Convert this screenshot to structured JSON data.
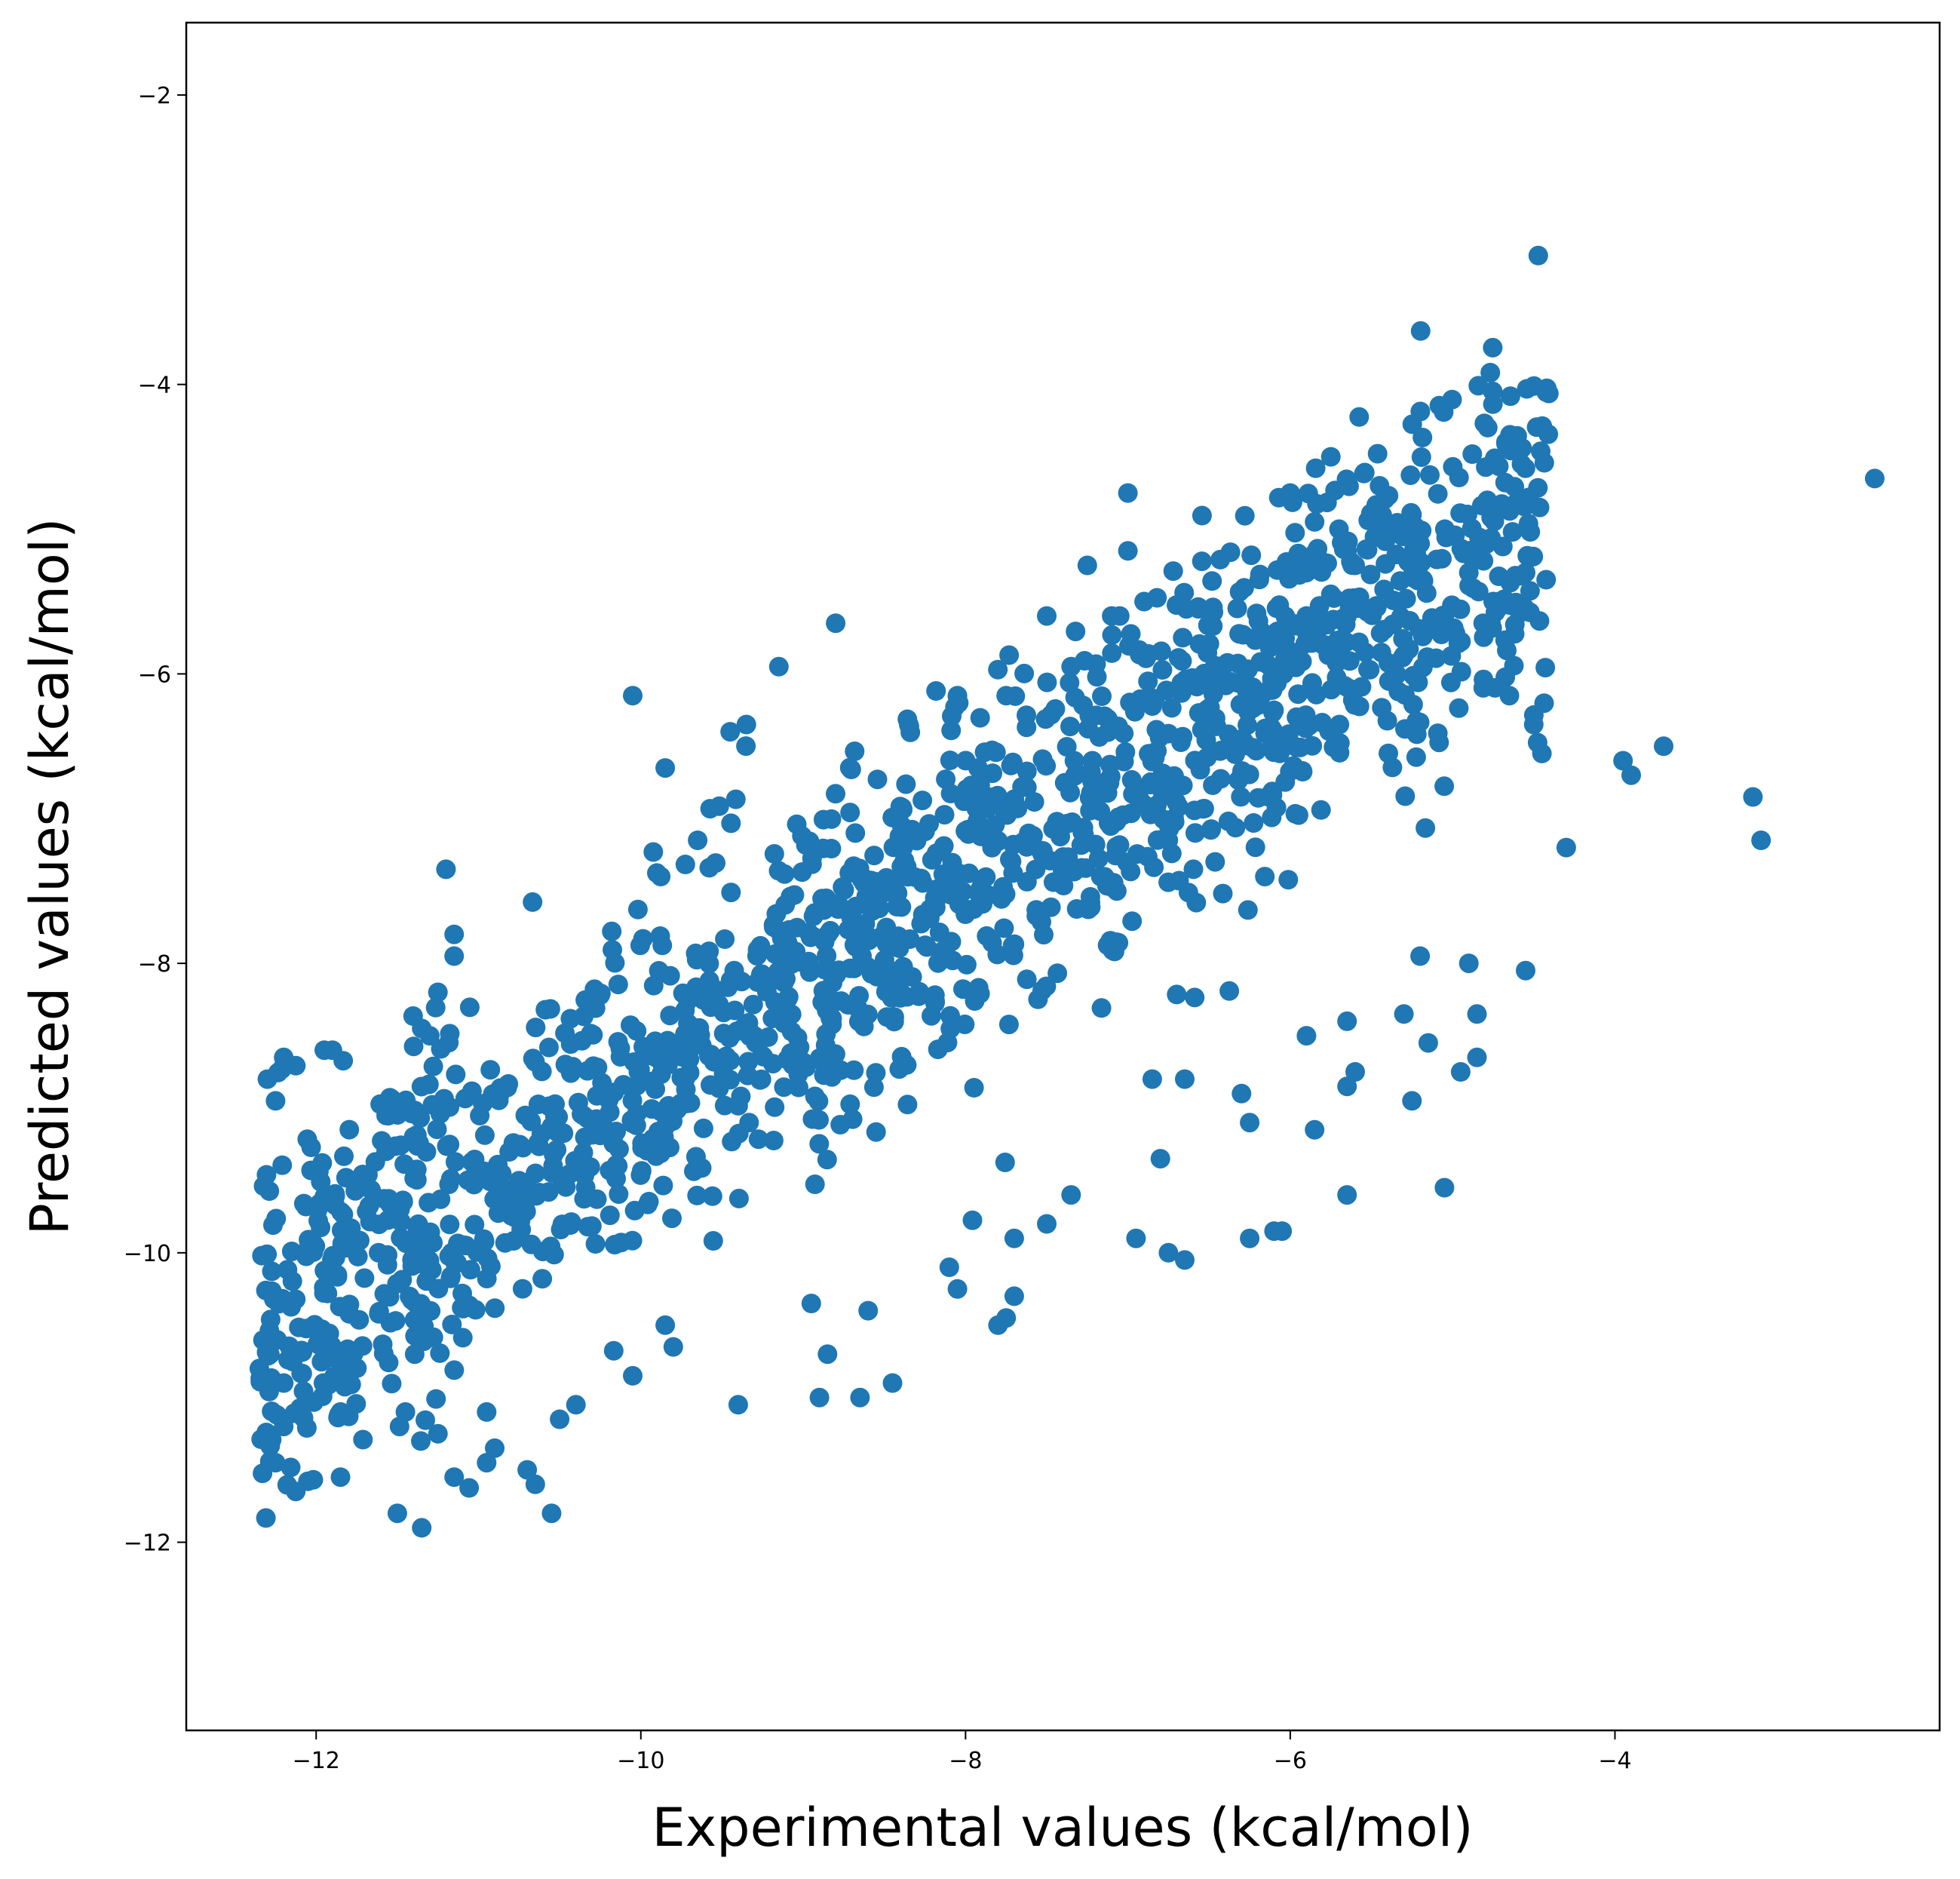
{
  "chart_data": {
    "type": "scatter",
    "xlabel": "Experimental values (kcal/mol)",
    "ylabel": "Predicted values (kcal/mol)",
    "xlim": [
      -12.8,
      -2.0
    ],
    "ylim": [
      -13.3,
      -1.5
    ],
    "xticks": [
      -12,
      -10,
      -8,
      -6,
      -4
    ],
    "xtick_labels": [
      "−12",
      "−10",
      "−8",
      "−6",
      "−4"
    ],
    "yticks": [
      -12,
      -10,
      -8,
      -6,
      -4,
      -2
    ],
    "ytick_labels": [
      "−12",
      "−10",
      "−8",
      "−6",
      "−4",
      "−2"
    ],
    "grid": false,
    "legend": "none",
    "marker_color": "#1f77b4",
    "outliers": [
      [
        -2.4,
        -4.65
      ],
      [
        -3.1,
        -7.15
      ],
      [
        -3.15,
        -6.85
      ],
      [
        -3.7,
        -6.5
      ],
      [
        -3.9,
        -6.7
      ],
      [
        -3.95,
        -6.6
      ],
      [
        -4.3,
        -7.2
      ],
      [
        -4.45,
        -6.55
      ],
      [
        -4.65,
        -4.4
      ],
      [
        -4.55,
        -5.3
      ],
      [
        -4.55,
        -8.05
      ],
      [
        -4.75,
        -5.5
      ],
      [
        -4.9,
        -5.3
      ],
      [
        -4.9,
        -8.0
      ],
      [
        -4.85,
        -8.35
      ],
      [
        -4.85,
        -8.65
      ],
      [
        -4.95,
        -8.75
      ],
      [
        -5.05,
        -5.6
      ],
      [
        -5.2,
        -5.1
      ],
      [
        -5.25,
        -4.9
      ],
      [
        -5.2,
        -7.95
      ],
      [
        -5.15,
        -8.55
      ],
      [
        -5.25,
        -8.95
      ],
      [
        -5.45,
        -4.7
      ],
      [
        -5.6,
        -5.25
      ],
      [
        -5.65,
        -5.6
      ],
      [
        -5.65,
        -8.4
      ],
      [
        -5.6,
        -8.75
      ],
      [
        -5.65,
        -8.85
      ],
      [
        -5.65,
        -9.6
      ],
      [
        -5.75,
        -4.5
      ],
      [
        -5.7,
        -5.0
      ],
      [
        -5.75,
        -5.45
      ],
      [
        -5.85,
        -4.95
      ],
      [
        -5.9,
        -5.6
      ],
      [
        -5.9,
        -5.3
      ],
      [
        -6.0,
        -4.75
      ],
      [
        -5.85,
        -9.15
      ],
      [
        -5.9,
        -8.5
      ],
      [
        -6.05,
        -9.85
      ],
      [
        -6.25,
        -9.9
      ],
      [
        -6.25,
        -9.1
      ],
      [
        -6.3,
        -8.9
      ],
      [
        -6.65,
        -10.05
      ],
      [
        -6.65,
        -8.8
      ],
      [
        -6.85,
        -8.8
      ],
      [
        -6.8,
        -9.35
      ],
      [
        -6.95,
        -9.9
      ],
      [
        -7.0,
        -4.75
      ],
      [
        -7.0,
        -5.15
      ],
      [
        -6.9,
        -5.5
      ],
      [
        -7.05,
        -5.6
      ],
      [
        -7.1,
        -5.6
      ],
      [
        -7.25,
        -5.25
      ],
      [
        -7.35,
        -5.95
      ],
      [
        -7.5,
        -5.6
      ],
      [
        -7.35,
        -9.6
      ],
      [
        -7.5,
        -9.8
      ],
      [
        -7.75,
        -6.15
      ],
      [
        -7.7,
        -9.9
      ],
      [
        -7.7,
        -10.3
      ],
      [
        -7.75,
        -10.45
      ],
      [
        -7.8,
        -10.5
      ],
      [
        -8.05,
        -6.15
      ],
      [
        -8.05,
        -10.25
      ],
      [
        -8.1,
        -10.1
      ],
      [
        -8.35,
        -6.35
      ],
      [
        -8.45,
        -10.9
      ],
      [
        -8.6,
        -10.4
      ],
      [
        -8.65,
        -11.0
      ],
      [
        -8.85,
        -10.7
      ],
      [
        -8.8,
        -5.65
      ],
      [
        -8.95,
        -10.35
      ],
      [
        -8.9,
        -11.0
      ],
      [
        -9.15,
        -5.95
      ],
      [
        -9.35,
        -6.35
      ],
      [
        -9.45,
        -6.4
      ],
      [
        -9.4,
        -11.05
      ],
      [
        -9.65,
        -7.15
      ],
      [
        -9.85,
        -6.65
      ],
      [
        -10.05,
        -6.15
      ],
      [
        -10.05,
        -10.85
      ],
      [
        -9.8,
        -10.65
      ],
      [
        -9.85,
        -10.5
      ],
      [
        -10.5,
        -11.15
      ],
      [
        -10.4,
        -11.05
      ],
      [
        -10.55,
        -11.8
      ],
      [
        -10.65,
        -11.6
      ],
      [
        -10.7,
        -11.5
      ],
      [
        -10.95,
        -11.45
      ],
      [
        -10.9,
        -11.35
      ],
      [
        -10.95,
        -11.1
      ],
      [
        -11.2,
        -7.35
      ],
      [
        -11.15,
        -7.8
      ],
      [
        -11.15,
        -7.95
      ],
      [
        -11.25,
        -8.2
      ],
      [
        -11.3,
        -8.5
      ],
      [
        -11.35,
        -11.9
      ],
      [
        -11.5,
        -11.8
      ],
      [
        -11.45,
        -11.1
      ],
      [
        -11.25,
        -11.25
      ],
      [
        -11.15,
        -11.55
      ],
      [
        -11.85,
        -11.55
      ],
      [
        -11.85,
        -11.1
      ],
      [
        -12.2,
        -11.2
      ],
      [
        -12.25,
        -11.45
      ],
      [
        -12.35,
        -10.8
      ],
      [
        -12.2,
        -10.9
      ],
      [
        -12.25,
        -8.95
      ],
      [
        -12.2,
        -8.65
      ],
      [
        -12.3,
        -8.8
      ],
      [
        -11.9,
        -8.6
      ],
      [
        -11.95,
        -8.6
      ],
      [
        -11.35,
        -8.45
      ],
      [
        -6.75,
        -10.0
      ],
      [
        -6.1,
        -9.85
      ],
      [
        -5.05,
        -9.55
      ],
      [
        -5.3,
        -8.35
      ],
      [
        -4.65,
        -6.15
      ],
      [
        -4.5,
        -6.35
      ]
    ],
    "cluster": {
      "regression": {
        "slope": 0.72,
        "intercept": -1.65
      },
      "x_range": [
        -12.35,
        -4.4
      ],
      "y_spread": 0.6,
      "count": 1600
    }
  }
}
